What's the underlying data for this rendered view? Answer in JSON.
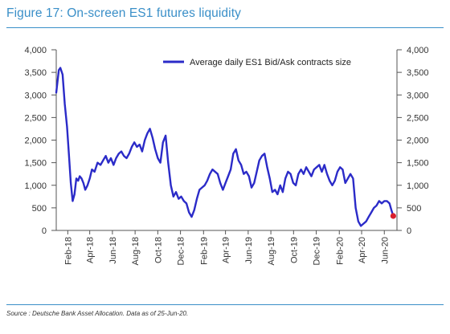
{
  "figure": {
    "title": "Figure 17: On-screen ES1 futures liquidity",
    "source": "Source : Deutsche Bank Asset Allocation. Data as of 25-Jun-20."
  },
  "colors": {
    "accent": "#3a8fc8",
    "series": "#2b2bc8",
    "endpoint": "#d9202e"
  },
  "chart_data": {
    "type": "line",
    "title": "",
    "xlabel": "",
    "ylabel": "",
    "ylim": [
      0,
      4000
    ],
    "y_ticks": [
      "0",
      "500",
      "1,000",
      "1,500",
      "2,000",
      "2,500",
      "3,000",
      "3,500",
      "4,000"
    ],
    "x_ticks": [
      "Feb-18",
      "Apr-18",
      "Jun-18",
      "Aug-18",
      "Oct-18",
      "Dec-18",
      "Feb-19",
      "Apr-19",
      "Jun-19",
      "Aug-19",
      "Oct-19",
      "Dec-19",
      "Feb-20",
      "Apr-20",
      "Jun-20"
    ],
    "grid": false,
    "legend_position": "top-right",
    "x_range": [
      "2018-01-01",
      "2020-07-05"
    ],
    "series": [
      {
        "name": "Average daily ES1 Bid/Ask contracts size",
        "x": [
          "2018-01-01",
          "2018-01-08",
          "2018-01-12",
          "2018-01-18",
          "2018-01-24",
          "2018-01-30",
          "2018-02-04",
          "2018-02-09",
          "2018-02-14",
          "2018-02-19",
          "2018-02-24",
          "2018-03-01",
          "2018-03-05",
          "2018-03-10",
          "2018-03-15",
          "2018-03-20",
          "2018-03-26",
          "2018-04-01",
          "2018-04-07",
          "2018-04-14",
          "2018-04-22",
          "2018-04-30",
          "2018-05-07",
          "2018-05-14",
          "2018-05-21",
          "2018-05-28",
          "2018-06-04",
          "2018-06-11",
          "2018-06-18",
          "2018-06-25",
          "2018-07-02",
          "2018-07-09",
          "2018-07-16",
          "2018-07-23",
          "2018-07-30",
          "2018-08-06",
          "2018-08-13",
          "2018-08-20",
          "2018-08-27",
          "2018-09-03",
          "2018-09-10",
          "2018-09-17",
          "2018-09-24",
          "2018-10-01",
          "2018-10-08",
          "2018-10-15",
          "2018-10-22",
          "2018-10-29",
          "2018-11-05",
          "2018-11-12",
          "2018-11-19",
          "2018-11-26",
          "2018-12-03",
          "2018-12-10",
          "2018-12-17",
          "2018-12-24",
          "2018-12-31",
          "2019-01-07",
          "2019-01-14",
          "2019-01-21",
          "2019-01-28",
          "2019-02-04",
          "2019-02-11",
          "2019-02-18",
          "2019-02-25",
          "2019-03-04",
          "2019-03-11",
          "2019-03-18",
          "2019-03-25",
          "2019-04-01",
          "2019-04-08",
          "2019-04-15",
          "2019-04-22",
          "2019-04-29",
          "2019-05-06",
          "2019-05-13",
          "2019-05-20",
          "2019-05-27",
          "2019-06-03",
          "2019-06-10",
          "2019-06-17",
          "2019-06-24",
          "2019-07-01",
          "2019-07-08",
          "2019-07-15",
          "2019-07-22",
          "2019-07-29",
          "2019-08-05",
          "2019-08-12",
          "2019-08-19",
          "2019-08-26",
          "2019-09-02",
          "2019-09-09",
          "2019-09-16",
          "2019-09-23",
          "2019-09-30",
          "2019-10-07",
          "2019-10-14",
          "2019-10-21",
          "2019-10-28",
          "2019-11-04",
          "2019-11-11",
          "2019-11-18",
          "2019-11-25",
          "2019-12-02",
          "2019-12-09",
          "2019-12-16",
          "2019-12-23",
          "2019-12-30",
          "2020-01-06",
          "2020-01-13",
          "2020-01-20",
          "2020-01-27",
          "2020-02-03",
          "2020-02-10",
          "2020-02-17",
          "2020-02-24",
          "2020-03-02",
          "2020-03-09",
          "2020-03-16",
          "2020-03-23",
          "2020-03-30",
          "2020-04-06",
          "2020-04-13",
          "2020-04-20",
          "2020-04-27",
          "2020-05-04",
          "2020-05-11",
          "2020-05-18",
          "2020-05-25",
          "2020-06-01",
          "2020-06-08",
          "2020-06-15",
          "2020-06-20",
          "2020-06-25"
        ],
        "values": [
          3050,
          3550,
          3600,
          3450,
          2800,
          2300,
          1700,
          1050,
          650,
          800,
          1150,
          1100,
          1200,
          1150,
          1050,
          900,
          1000,
          1150,
          1350,
          1300,
          1500,
          1450,
          1550,
          1650,
          1500,
          1600,
          1450,
          1600,
          1700,
          1750,
          1650,
          1600,
          1700,
          1850,
          1950,
          1850,
          1900,
          1750,
          2000,
          2150,
          2250,
          2050,
          1800,
          1600,
          1500,
          1950,
          2100,
          1500,
          1000,
          750,
          850,
          700,
          750,
          650,
          600,
          400,
          300,
          450,
          700,
          900,
          950,
          1000,
          1100,
          1250,
          1350,
          1300,
          1250,
          1050,
          900,
          1050,
          1200,
          1350,
          1700,
          1800,
          1550,
          1450,
          1250,
          1300,
          1200,
          950,
          1050,
          1300,
          1550,
          1650,
          1700,
          1400,
          1150,
          850,
          900,
          800,
          1000,
          850,
          1150,
          1300,
          1250,
          1050,
          1000,
          1250,
          1350,
          1250,
          1400,
          1300,
          1200,
          1350,
          1400,
          1450,
          1300,
          1450,
          1250,
          1100,
          1000,
          1100,
          1300,
          1400,
          1350,
          1050,
          1150,
          1250,
          1150,
          500,
          200,
          100,
          150,
          200,
          300,
          400,
          500,
          550,
          650,
          600,
          650,
          650,
          600,
          450,
          320
        ]
      }
    ]
  }
}
